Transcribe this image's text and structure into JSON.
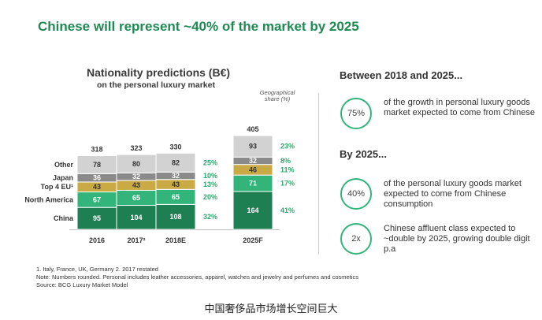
{
  "main_title": "Chinese will represent ~40% of the market by 2025",
  "chart_data": {
    "type": "bar",
    "stacked": true,
    "title": "Nationality predictions (B€)",
    "subtitle": "on the personal luxury market",
    "categories": [
      "2016",
      "2017²",
      "2018E",
      "2025F"
    ],
    "totals": [
      "318",
      "323",
      "330",
      "405"
    ],
    "series": [
      {
        "name": "China",
        "values": [
          95,
          104,
          108,
          164
        ],
        "color": "#1d7f52",
        "share": "32%",
        "share_2025": "41%"
      },
      {
        "name": "North America",
        "values": [
          67,
          65,
          65,
          71
        ],
        "color": "#33b47a",
        "share": "20%",
        "share_2025": "17%"
      },
      {
        "name": "Top 4 EU¹",
        "values": [
          43,
          43,
          43,
          46
        ],
        "color": "#c9aa45",
        "share": "13%",
        "share_2025": "11%"
      },
      {
        "name": "Japan",
        "values": [
          36,
          32,
          32,
          32
        ],
        "color": "#8a8a8a",
        "share": "10%",
        "share_2025": "8%"
      },
      {
        "name": "Other",
        "values": [
          78,
          80,
          82,
          93
        ],
        "color": "#d2d2d2",
        "share": "25%",
        "share_2025": "23%"
      }
    ],
    "share_label": "Geographical share (%)"
  },
  "right_panel": {
    "heading1": "Between 2018 and 2025...",
    "stat1_value": "75%",
    "stat1_text": "of the growth in personal luxury goods market expected to come from Chinese",
    "heading2": "By 2025...",
    "stat2_value": "40%",
    "stat2_text": "of the personal luxury goods market expected to come from Chinese consumption",
    "stat3_value": "2x",
    "stat3_text": "Chinese affluent class expected to ~double by 2025, growing double digit p.a"
  },
  "footnotes": {
    "line1": "1. Italy, France, UK, Germany  2. 2017 restated",
    "line2": "Note: Numbers rounded. Personal includes leather accessories, apparel, watches and jewelry and perfumes and cosmetics",
    "line3": "Source: BCG Luxury Market Model"
  },
  "caption": "中国奢侈品市场增长空间巨大"
}
